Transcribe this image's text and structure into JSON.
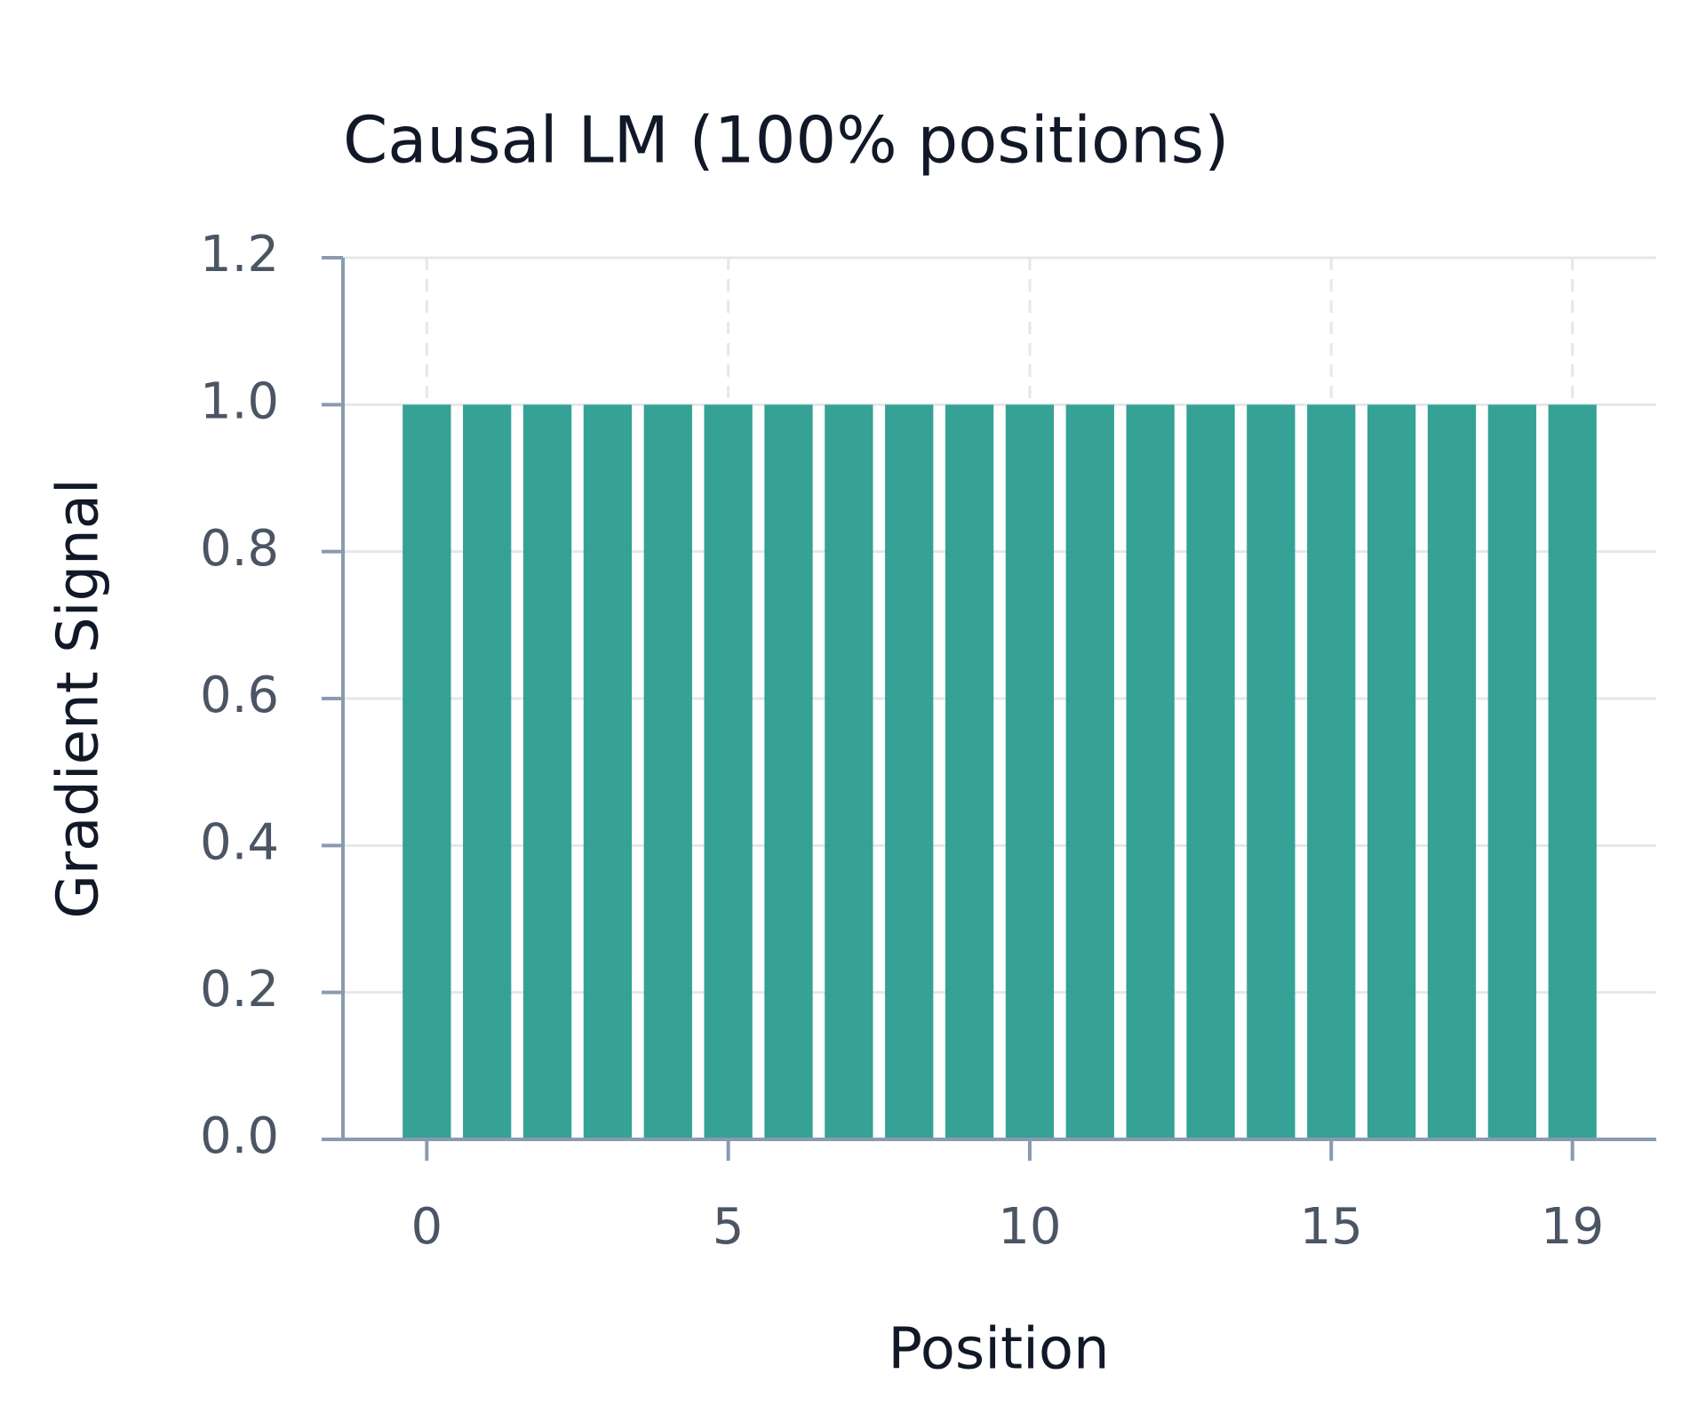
{
  "chart_data": {
    "type": "bar",
    "title": "Causal LM (100% positions)",
    "x_label": "Position",
    "y_label": "Gradient Signal",
    "x": [
      0,
      1,
      2,
      3,
      4,
      5,
      6,
      7,
      8,
      9,
      10,
      11,
      12,
      13,
      14,
      15,
      16,
      17,
      18,
      19
    ],
    "values": [
      1,
      1,
      1,
      1,
      1,
      1,
      1,
      1,
      1,
      1,
      1,
      1,
      1,
      1,
      1,
      1,
      1,
      1,
      1,
      1
    ],
    "color": "#2a9d8f",
    "xlim": [
      -1.39,
      20.39
    ],
    "xticks": [
      0,
      5,
      10,
      15,
      19
    ],
    "ylim": [
      0,
      1.2
    ],
    "yticks": [
      {
        "value": 0,
        "label": "0.0"
      },
      0.2,
      0.4,
      0.6,
      0.8,
      {
        "value": 1,
        "label": "1.0"
      },
      1.2
    ],
    "grid": true
  }
}
